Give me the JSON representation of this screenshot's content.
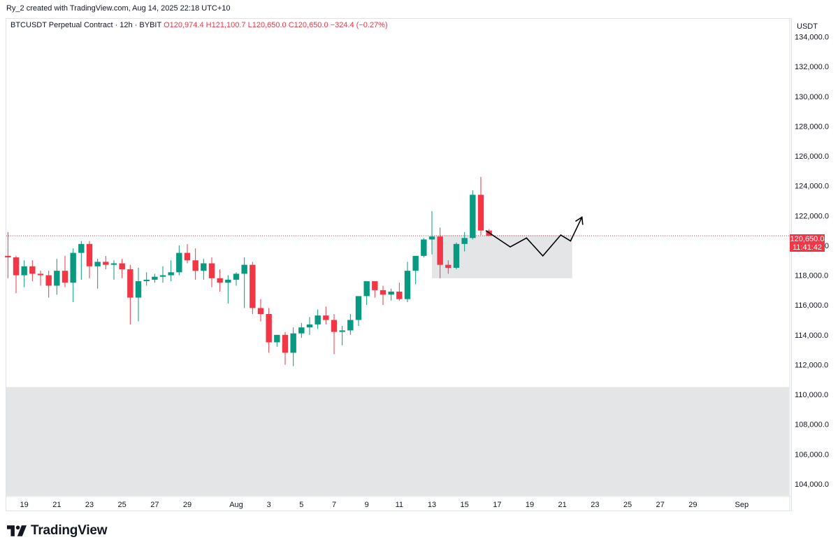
{
  "caption": "Ry_2 created with TradingView.com, Aug 14, 2025 22:18 UTC+10",
  "legend": {
    "symbol": "BTCUSDT Perpetual Contract · 12h · BYBIT",
    "open": "O120,974.4",
    "high": "H121,100.7",
    "low": "L120,650.0",
    "close": "C120,650.0",
    "change": "−324.4 (−0.27%)"
  },
  "price_scale": {
    "currency": "USDT",
    "last_price": "120,650.0",
    "countdown": "11:41:42"
  },
  "brand": {
    "name": "TradingView"
  },
  "colors": {
    "up": "#089981",
    "down": "#f23645",
    "zone": "#e3e4e6",
    "line": "#000000"
  },
  "chart_data": {
    "type": "candlestick",
    "timeframe": "12h",
    "ylim": [
      103200,
      135200
    ],
    "y_ticks": [
      104000,
      106000,
      108000,
      110000,
      112000,
      114000,
      116000,
      118000,
      120000,
      122000,
      124000,
      126000,
      128000,
      130000,
      132000,
      134000
    ],
    "y_tick_labels": [
      "104,000.0",
      "106,000.0",
      "108,000.0",
      "110,000.0",
      "112,000.0",
      "114,000.0",
      "116,000.0",
      "118,000.0",
      "120,000.0",
      "122,000.0",
      "124,000.0",
      "126,000.0",
      "128,000.0",
      "130,000.0",
      "132,000.0",
      "134,000.0"
    ],
    "x_ticks": [
      {
        "day": 19,
        "label": "19"
      },
      {
        "day": 21,
        "label": "21"
      },
      {
        "day": 23,
        "label": "23"
      },
      {
        "day": 25,
        "label": "25"
      },
      {
        "day": 27,
        "label": "27"
      },
      {
        "day": 29,
        "label": "29"
      },
      {
        "day": 32,
        "label": "Aug"
      },
      {
        "day": 34,
        "label": "3"
      },
      {
        "day": 36,
        "label": "5"
      },
      {
        "day": 38,
        "label": "7"
      },
      {
        "day": 40,
        "label": "9"
      },
      {
        "day": 42,
        "label": "11"
      },
      {
        "day": 44,
        "label": "13"
      },
      {
        "day": 46,
        "label": "15"
      },
      {
        "day": 48,
        "label": "17"
      },
      {
        "day": 50,
        "label": "19"
      },
      {
        "day": 52,
        "label": "21"
      },
      {
        "day": 54,
        "label": "23"
      },
      {
        "day": 56,
        "label": "25"
      },
      {
        "day": 58,
        "label": "27"
      },
      {
        "day": 60,
        "label": "29"
      },
      {
        "day": 63,
        "label": "Sep"
      }
    ],
    "x_range_days": [
      17.9,
      65.9
    ],
    "first_candle_day": 18,
    "candle_step_days": 0.5,
    "last_price": 120650,
    "candles": [
      [
        119300,
        120900,
        117800,
        119200
      ],
      [
        119200,
        119300,
        116800,
        118000
      ],
      [
        118000,
        119000,
        117200,
        118600
      ],
      [
        118600,
        119000,
        117600,
        118100
      ],
      [
        118100,
        118300,
        117300,
        118000
      ],
      [
        118000,
        118300,
        116500,
        117300
      ],
      [
        117300,
        119100,
        116700,
        118300
      ],
      [
        118300,
        119300,
        117200,
        117500
      ],
      [
        117500,
        119800,
        116200,
        119500
      ],
      [
        119500,
        120300,
        117700,
        120100
      ],
      [
        120100,
        120300,
        117800,
        118600
      ],
      [
        118600,
        119100,
        117100,
        118900
      ],
      [
        118900,
        119300,
        118400,
        118700
      ],
      [
        118700,
        119000,
        117700,
        118800
      ],
      [
        118800,
        119100,
        117800,
        118400
      ],
      [
        118400,
        118700,
        114700,
        116500
      ],
      [
        116500,
        118500,
        114900,
        117600
      ],
      [
        117600,
        118200,
        117300,
        117700
      ],
      [
        117700,
        118100,
        117500,
        117900
      ],
      [
        117900,
        118600,
        117500,
        118000
      ],
      [
        118000,
        119000,
        117600,
        118200
      ],
      [
        118200,
        120000,
        118000,
        119500
      ],
      [
        119500,
        120100,
        118800,
        119000
      ],
      [
        119000,
        119800,
        117700,
        118300
      ],
      [
        118300,
        119100,
        117700,
        118800
      ],
      [
        118800,
        119200,
        117200,
        117800
      ],
      [
        117800,
        118400,
        116900,
        117500
      ],
      [
        117500,
        118000,
        116100,
        117700
      ],
      [
        117700,
        118200,
        117300,
        118100
      ],
      [
        118100,
        119200,
        115800,
        118700
      ],
      [
        118700,
        118900,
        115400,
        115800
      ],
      [
        115800,
        116400,
        114900,
        115400
      ],
      [
        115400,
        115800,
        112800,
        113500
      ],
      [
        113500,
        114000,
        113200,
        114000
      ],
      [
        114000,
        114200,
        112000,
        112800
      ],
      [
        112800,
        114500,
        111900,
        114100
      ],
      [
        114100,
        114800,
        113800,
        114500
      ],
      [
        114500,
        115200,
        114000,
        114700
      ],
      [
        114700,
        115700,
        114400,
        115300
      ],
      [
        115300,
        115900,
        114700,
        115000
      ],
      [
        115000,
        115400,
        112700,
        114200
      ],
      [
        114200,
        114600,
        113300,
        114300
      ],
      [
        114300,
        115400,
        114000,
        115000
      ],
      [
        115000,
        116500,
        114600,
        116600
      ],
      [
        116600,
        117300,
        116000,
        117600
      ],
      [
        117600,
        117500,
        116500,
        117000
      ],
      [
        117000,
        117300,
        116000,
        116700
      ],
      [
        116700,
        117100,
        116300,
        116900
      ],
      [
        116900,
        117500,
        116300,
        116400
      ],
      [
        116400,
        118900,
        116200,
        118300
      ],
      [
        118300,
        119300,
        117400,
        119300
      ],
      [
        119300,
        120500,
        119200,
        120400
      ],
      [
        120400,
        122300,
        119400,
        120600
      ],
      [
        120600,
        121200,
        117800,
        118700
      ],
      [
        118700,
        119000,
        118100,
        118500
      ],
      [
        118500,
        120200,
        118400,
        120100
      ],
      [
        120100,
        120900,
        119600,
        120500
      ],
      [
        120500,
        123700,
        120400,
        123400
      ],
      [
        123400,
        124600,
        120700,
        121000
      ],
      [
        121000,
        121100,
        120650,
        120650
      ]
    ],
    "support_zones": [
      {
        "from_day": 44.0,
        "to_day": 52.6,
        "low": 117800,
        "high": 120700
      },
      {
        "from_day": 17.9,
        "to_day": 65.9,
        "low": 103200,
        "high": 110500
      }
    ],
    "projection_path": [
      [
        47.3,
        121000
      ],
      [
        48.8,
        119900
      ],
      [
        49.8,
        120500
      ],
      [
        50.8,
        119300
      ],
      [
        51.9,
        120700
      ],
      [
        52.5,
        120300
      ],
      [
        53.2,
        121900
      ]
    ],
    "projection_arrowhead": true
  }
}
